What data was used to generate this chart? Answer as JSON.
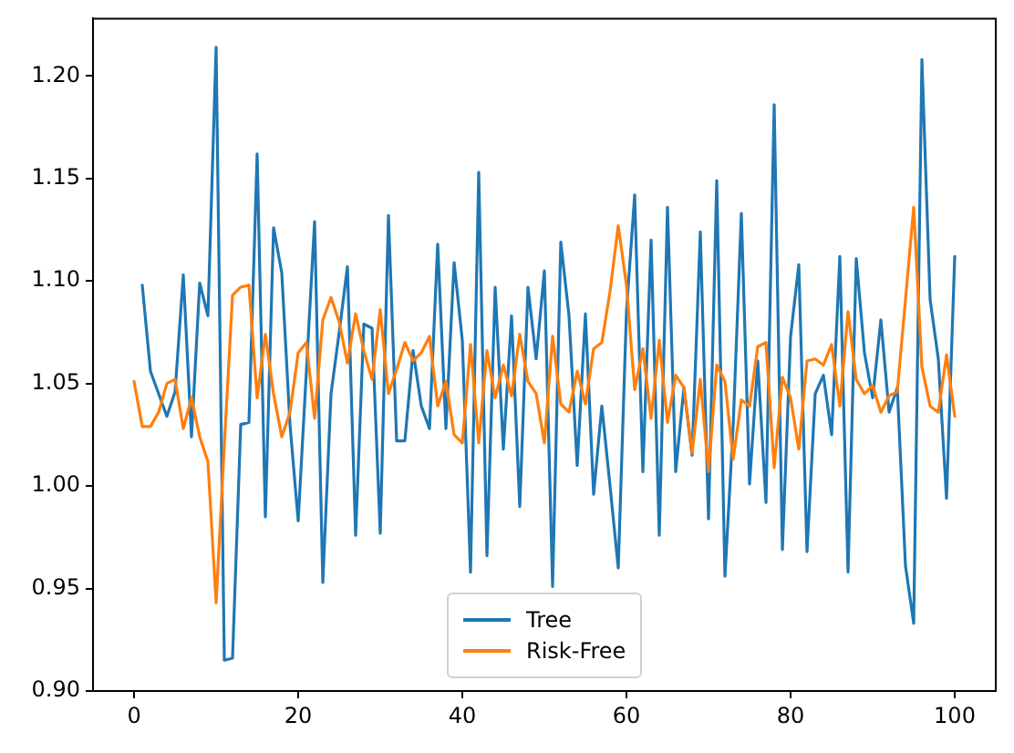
{
  "chart_data": {
    "type": "line",
    "x": [
      0,
      1,
      2,
      3,
      4,
      5,
      6,
      7,
      8,
      9,
      10,
      11,
      12,
      13,
      14,
      15,
      16,
      17,
      18,
      19,
      20,
      21,
      22,
      23,
      24,
      25,
      26,
      27,
      28,
      29,
      30,
      31,
      32,
      33,
      34,
      35,
      36,
      37,
      38,
      39,
      40,
      41,
      42,
      43,
      44,
      45,
      46,
      47,
      48,
      49,
      50,
      51,
      52,
      53,
      54,
      55,
      56,
      57,
      58,
      59,
      60,
      61,
      62,
      63,
      64,
      65,
      66,
      67,
      68,
      69,
      70,
      71,
      72,
      73,
      74,
      75,
      76,
      77,
      78,
      79,
      80,
      81,
      82,
      83,
      84,
      85,
      86,
      87,
      88,
      89,
      90,
      91,
      92,
      93,
      94,
      95,
      96,
      97,
      98,
      99,
      100
    ],
    "series": [
      {
        "name": "Tree",
        "color": "#1f77b4",
        "values": [
          null,
          1.098,
          1.056,
          1.045,
          1.034,
          1.046,
          1.103,
          1.024,
          1.099,
          1.083,
          1.214,
          0.915,
          0.916,
          1.03,
          1.031,
          1.162,
          0.985,
          1.126,
          1.104,
          1.03,
          0.983,
          1.056,
          1.129,
          0.953,
          1.045,
          1.075,
          1.107,
          0.976,
          1.079,
          1.077,
          0.977,
          1.132,
          1.022,
          1.022,
          1.066,
          1.039,
          1.028,
          1.118,
          1.028,
          1.109,
          1.071,
          0.958,
          1.153,
          0.966,
          1.097,
          1.018,
          1.083,
          0.99,
          1.097,
          1.062,
          1.105,
          0.951,
          1.119,
          1.083,
          1.01,
          1.084,
          0.996,
          1.039,
          1.0,
          0.96,
          1.085,
          1.142,
          1.007,
          1.12,
          0.976,
          1.136,
          1.007,
          1.048,
          1.015,
          1.124,
          0.984,
          1.149,
          0.956,
          1.029,
          1.133,
          1.001,
          1.061,
          0.992,
          1.186,
          0.969,
          1.073,
          1.108,
          0.968,
          1.045,
          1.054,
          1.025,
          1.112,
          0.958,
          1.111,
          1.065,
          1.043,
          1.081,
          1.036,
          1.048,
          0.961,
          0.933,
          1.208,
          1.091,
          1.062,
          0.994,
          1.112
        ]
      },
      {
        "name": "Risk-Free",
        "color": "#ff7f0e",
        "values": [
          1.051,
          1.029,
          1.029,
          1.036,
          1.05,
          1.052,
          1.028,
          1.043,
          1.024,
          1.012,
          0.943,
          1.02,
          1.093,
          1.097,
          1.098,
          1.043,
          1.074,
          1.045,
          1.024,
          1.036,
          1.065,
          1.07,
          1.033,
          1.081,
          1.092,
          1.08,
          1.06,
          1.084,
          1.066,
          1.052,
          1.086,
          1.045,
          1.057,
          1.07,
          1.061,
          1.065,
          1.073,
          1.039,
          1.051,
          1.025,
          1.021,
          1.069,
          1.021,
          1.066,
          1.043,
          1.059,
          1.044,
          1.074,
          1.051,
          1.045,
          1.021,
          1.073,
          1.04,
          1.036,
          1.056,
          1.04,
          1.067,
          1.07,
          1.095,
          1.127,
          1.098,
          1.047,
          1.067,
          1.033,
          1.071,
          1.031,
          1.054,
          1.048,
          1.016,
          1.052,
          1.007,
          1.059,
          1.051,
          1.013,
          1.042,
          1.039,
          1.068,
          1.07,
          1.009,
          1.053,
          1.043,
          1.018,
          1.061,
          1.062,
          1.059,
          1.069,
          1.039,
          1.085,
          1.052,
          1.045,
          1.049,
          1.036,
          1.044,
          1.046,
          1.091,
          1.136,
          1.058,
          1.039,
          1.036,
          1.064,
          1.034
        ]
      }
    ],
    "xlim": [
      -5,
      105
    ],
    "xticks": [
      0,
      20,
      40,
      60,
      80,
      100
    ],
    "ylim": [
      0.9,
      1.228
    ],
    "yticks": [
      {
        "value": 0.9,
        "label": "0.90"
      },
      {
        "value": 0.95,
        "label": "0.95"
      },
      {
        "value": 1.0,
        "label": "1.00"
      },
      {
        "value": 1.05,
        "label": "1.05"
      },
      {
        "value": 1.1,
        "label": "1.10"
      },
      {
        "value": 1.15,
        "label": "1.15"
      },
      {
        "value": 1.2,
        "label": "1.20"
      }
    ],
    "grid": false,
    "legend": "bottom",
    "marker": "none",
    "line_style": "solid"
  }
}
